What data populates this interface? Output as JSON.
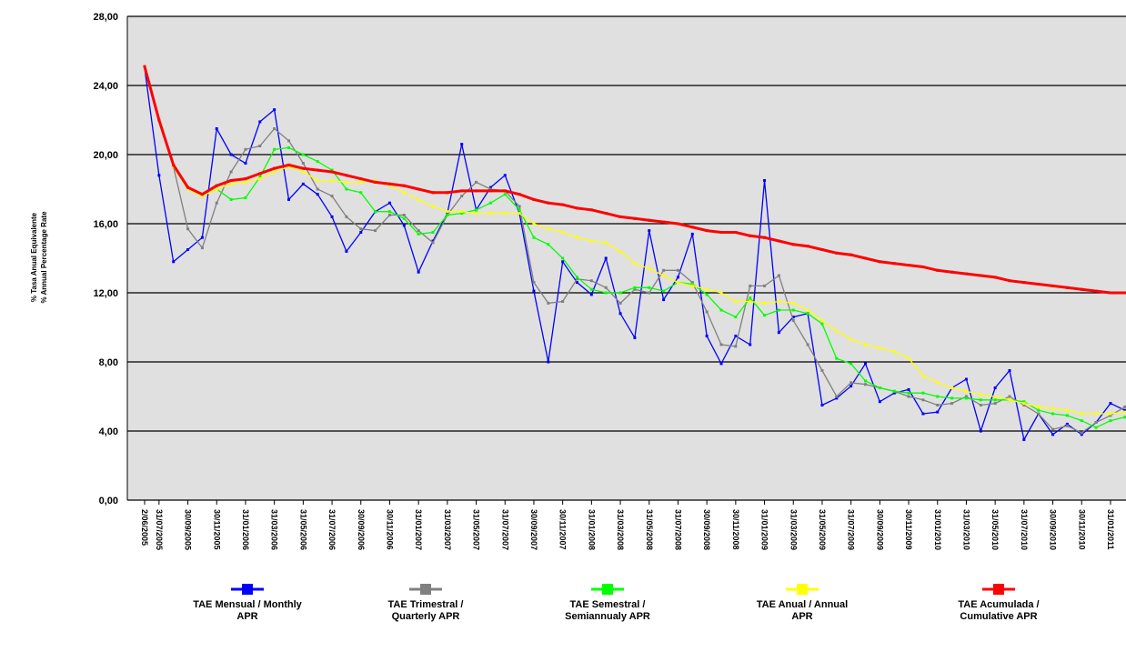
{
  "chart_data": {
    "type": "line",
    "y_label": [
      "% Tasa Anual Equivalente",
      "% Annual Percentage Rate"
    ],
    "categories": [
      "2/06/2005",
      "31/07/2005",
      null,
      "30/09/2005",
      null,
      "30/11/2005",
      null,
      "31/01/2006",
      null,
      "31/03/2006",
      null,
      "31/05/2006",
      null,
      "31/07/2006",
      null,
      "30/09/2006",
      null,
      "30/11/2006",
      null,
      "31/01/2007",
      null,
      "31/03/2007",
      null,
      "31/05/2007",
      null,
      "31/07/2007",
      null,
      "30/09/2007",
      null,
      "30/11/2007",
      null,
      "31/01/2008",
      null,
      "31/03/2008",
      null,
      "31/05/2008",
      null,
      "31/07/2008",
      null,
      "30/09/2008",
      null,
      "30/11/2008",
      null,
      "31/01/2009",
      null,
      "31/03/2009",
      null,
      "31/05/2009",
      null,
      "31/07/2009",
      null,
      "30/09/2009",
      null,
      "30/11/2009",
      null,
      "31/01/2010",
      null,
      "31/03/2010",
      null,
      "31/05/2010",
      null,
      "31/07/2010",
      null,
      "30/09/2010",
      null,
      "30/11/2010",
      null,
      "31/01/2011",
      null
    ],
    "ylim": [
      0,
      28
    ],
    "yticks": [
      {
        "value": 0,
        "label": "0,00"
      },
      {
        "value": 4,
        "label": "4,00"
      },
      {
        "value": 8,
        "label": "8,00"
      },
      {
        "value": 12,
        "label": "12,00"
      },
      {
        "value": 16,
        "label": "16,00"
      },
      {
        "value": 20,
        "label": "20,00"
      },
      {
        "value": 24,
        "label": "24,00"
      },
      {
        "value": 28,
        "label": "28,00"
      }
    ],
    "grid": true,
    "series": [
      {
        "name": "TAE Mensual /   Monthly\nAPR",
        "color": "#0000ff",
        "values": [
          25.0,
          18.8,
          13.8,
          14.5,
          15.2,
          21.5,
          20.0,
          19.5,
          21.9,
          22.6,
          17.4,
          18.3,
          17.7,
          16.4,
          14.4,
          15.5,
          16.7,
          17.2,
          15.9,
          13.2,
          15.0,
          16.6,
          20.6,
          16.8,
          18.1,
          18.8,
          16.6,
          12.1,
          8.0,
          13.8,
          12.6,
          11.9,
          14.0,
          10.8,
          9.4,
          15.6,
          11.6,
          12.9,
          15.4,
          9.5,
          7.9,
          9.5,
          9.0,
          18.5,
          9.7,
          10.6,
          10.8,
          5.5,
          5.9,
          6.6,
          7.9,
          5.7,
          6.2,
          6.4,
          5.0,
          5.1,
          6.5,
          7.0,
          4.0,
          6.5,
          7.5,
          3.5,
          5.0,
          3.8,
          4.4,
          3.8,
          4.5,
          5.6,
          5.2
        ]
      },
      {
        "name": "TAE Trimestral /\nQuarterly APR",
        "color": "#808080",
        "values": [
          25.0,
          22.0,
          19.3,
          15.7,
          14.6,
          17.2,
          19.0,
          20.3,
          20.5,
          21.5,
          20.8,
          19.5,
          18.0,
          17.6,
          16.4,
          15.7,
          15.6,
          16.5,
          16.5,
          15.6,
          14.9,
          16.5,
          17.6,
          18.4,
          18.0,
          17.9,
          17.0,
          12.6,
          11.4,
          11.5,
          12.8,
          12.7,
          12.3,
          11.4,
          12.2,
          12.0,
          13.3,
          13.3,
          12.6,
          10.9,
          9.0,
          8.9,
          12.4,
          12.4,
          13.0,
          10.4,
          9.0,
          7.5,
          6.0,
          6.8,
          6.7,
          6.5,
          6.3,
          6.0,
          5.8,
          5.5,
          5.6,
          6.0,
          5.5,
          5.6,
          6.0,
          5.5,
          5.0,
          4.1,
          4.3,
          3.9,
          4.5,
          4.9,
          5.4
        ]
      },
      {
        "name": "TAE Semestral /\nSemiannualy APR",
        "color": "#00ff00",
        "values": [
          25.0,
          22.0,
          19.3,
          18.0,
          17.6,
          18.0,
          17.4,
          17.5,
          18.7,
          20.3,
          20.4,
          20.0,
          19.6,
          19.1,
          18.0,
          17.8,
          16.7,
          16.7,
          16.3,
          15.4,
          15.5,
          16.5,
          16.6,
          16.8,
          17.2,
          17.7,
          16.8,
          15.2,
          14.8,
          14.0,
          12.9,
          12.2,
          12.0,
          12.0,
          12.3,
          12.3,
          12.1,
          12.6,
          12.5,
          11.9,
          11.0,
          10.6,
          11.7,
          10.7,
          11.0,
          11.0,
          10.8,
          10.2,
          8.2,
          7.9,
          6.9,
          6.5,
          6.3,
          6.2,
          6.2,
          6.0,
          5.9,
          5.9,
          5.8,
          5.8,
          5.8,
          5.7,
          5.2,
          5.0,
          4.9,
          4.6,
          4.2,
          4.6,
          4.8
        ]
      },
      {
        "name": "TAE Anual / Annual\nAPR",
        "color": "#ffff00",
        "values": [
          25.0,
          22.0,
          19.3,
          18.0,
          17.6,
          18.0,
          18.3,
          18.4,
          18.6,
          19.0,
          19.3,
          19.0,
          18.5,
          18.5,
          18.4,
          18.4,
          18.5,
          18.2,
          17.8,
          17.4,
          17.0,
          16.7,
          16.7,
          16.6,
          16.6,
          16.6,
          16.6,
          16.0,
          15.7,
          15.5,
          15.2,
          15.0,
          14.9,
          14.4,
          13.7,
          13.4,
          13.0,
          12.6,
          12.4,
          12.2,
          12.0,
          11.5,
          11.5,
          11.4,
          11.5,
          11.4,
          11.0,
          10.4,
          9.8,
          9.3,
          9.0,
          8.8,
          8.6,
          8.2,
          7.2,
          6.8,
          6.5,
          6.3,
          6.1,
          6.0,
          5.8,
          5.6,
          5.4,
          5.3,
          5.2,
          5.0,
          5.0,
          5.0,
          5.1
        ]
      },
      {
        "name": "TAE Acumulada /\nCumulative APR",
        "color": "#ff0000",
        "values": [
          25.1,
          22.0,
          19.4,
          18.1,
          17.7,
          18.2,
          18.5,
          18.6,
          18.9,
          19.2,
          19.4,
          19.2,
          19.1,
          19.0,
          18.8,
          18.6,
          18.4,
          18.3,
          18.2,
          18.0,
          17.8,
          17.8,
          17.9,
          17.9,
          17.9,
          17.9,
          17.7,
          17.4,
          17.2,
          17.1,
          16.9,
          16.8,
          16.6,
          16.4,
          16.3,
          16.2,
          16.1,
          16.0,
          15.8,
          15.6,
          15.5,
          15.5,
          15.3,
          15.2,
          15.0,
          14.8,
          14.7,
          14.5,
          14.3,
          14.2,
          14.0,
          13.8,
          13.7,
          13.6,
          13.5,
          13.3,
          13.2,
          13.1,
          13.0,
          12.9,
          12.7,
          12.6,
          12.5,
          12.4,
          12.3,
          12.2,
          12.1,
          12.0,
          12.0
        ]
      }
    ]
  }
}
